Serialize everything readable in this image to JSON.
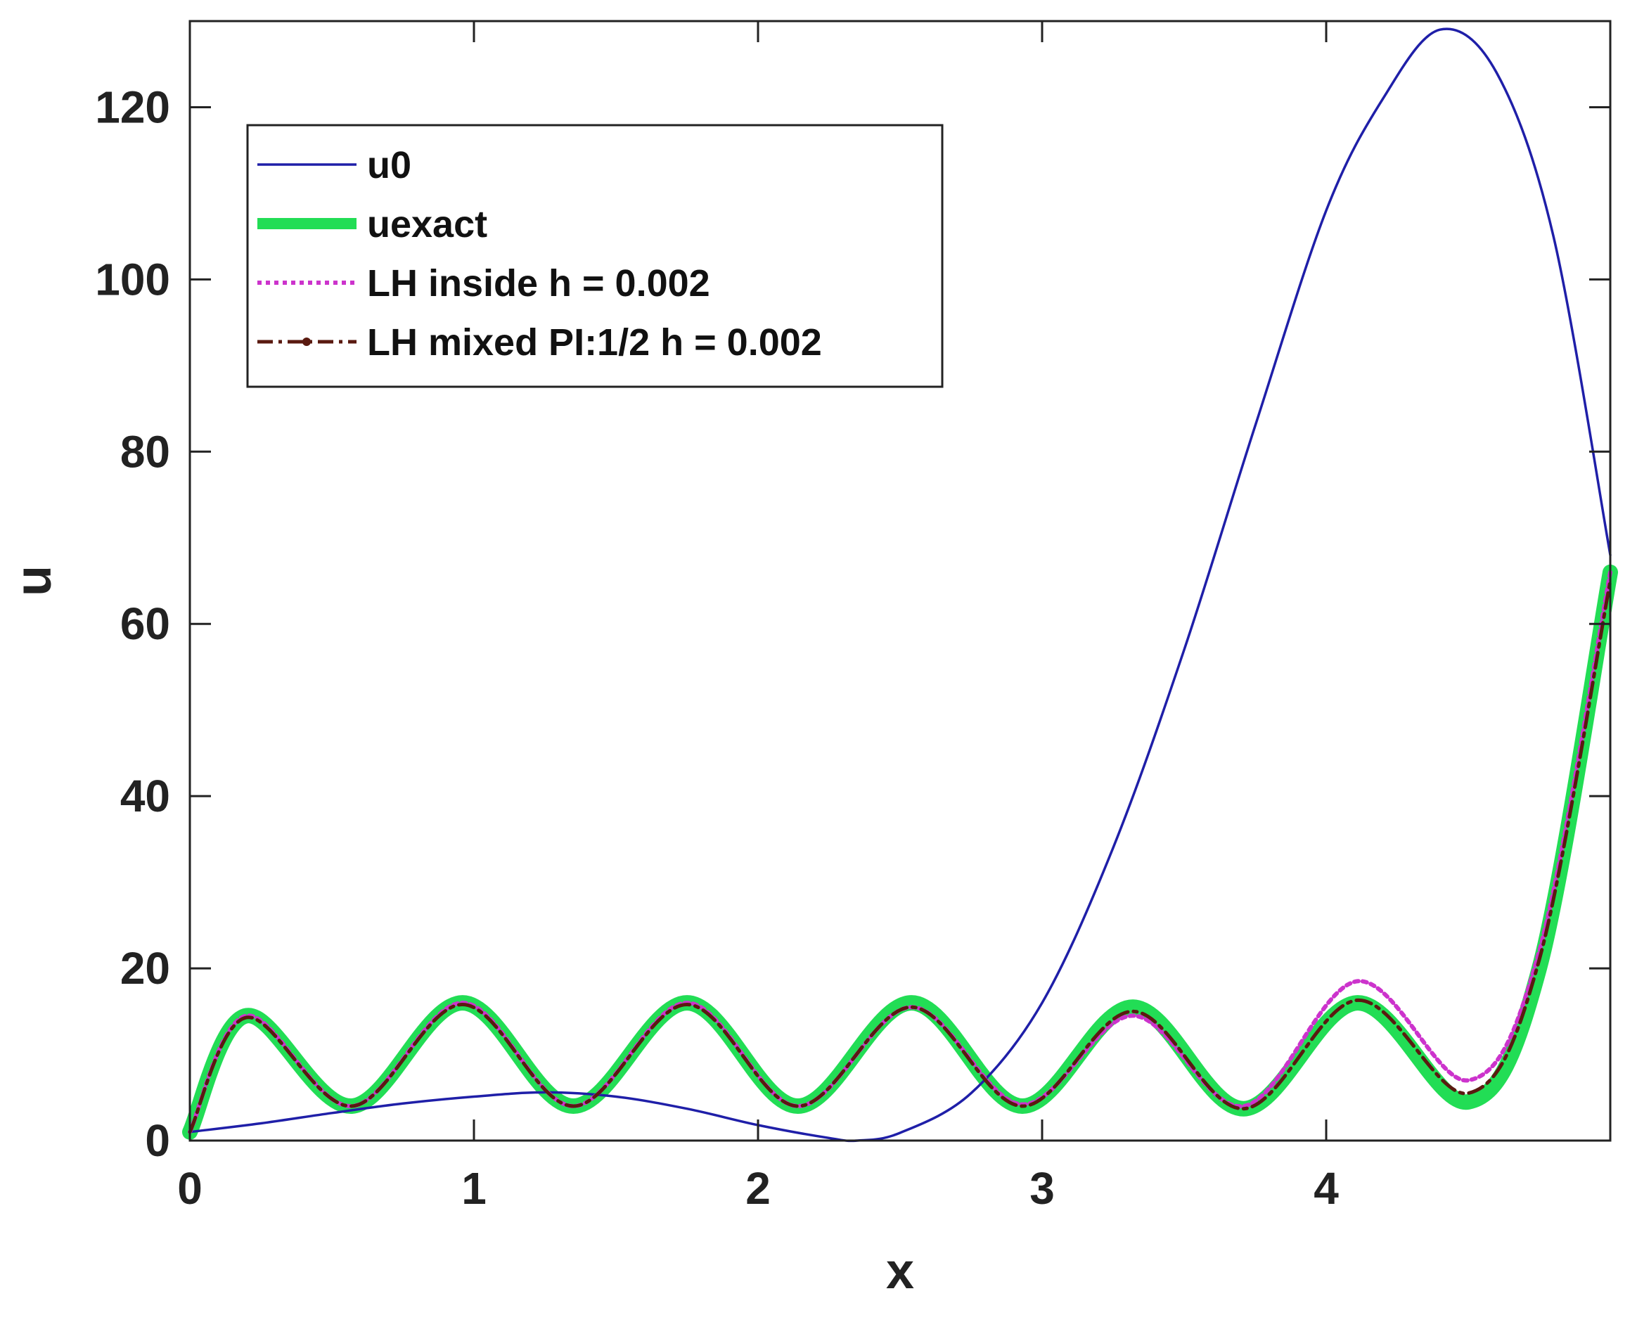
{
  "chart_data": {
    "type": "line",
    "title": "",
    "xlabel": "x",
    "ylabel": "u",
    "xlim": [
      0,
      5
    ],
    "ylim": [
      0,
      130
    ],
    "xticks": [
      0,
      1,
      2,
      3,
      4
    ],
    "xtick_labels": [
      "0",
      "1",
      "2",
      "3",
      "4"
    ],
    "yticks": [
      0,
      20,
      40,
      60,
      80,
      100,
      120
    ],
    "ytick_labels": [
      "0",
      "20",
      "40",
      "60",
      "80",
      "100",
      "120"
    ],
    "grid": false,
    "legend_position": "top-left",
    "series": [
      {
        "name": "u0",
        "color": "#1f1fa8",
        "style": "solid",
        "x": [
          0,
          0.25,
          0.5,
          0.75,
          1.0,
          1.25,
          1.5,
          1.75,
          2.0,
          2.25,
          2.35,
          2.5,
          2.75,
          3.0,
          3.25,
          3.5,
          3.75,
          4.0,
          4.2,
          4.4,
          4.6,
          4.8,
          5.0
        ],
        "y": [
          1,
          2,
          3.2,
          4.3,
          5.1,
          5.6,
          5.1,
          3.7,
          1.8,
          0.3,
          0,
          0.9,
          5.5,
          16,
          34,
          57,
          83,
          108,
          121,
          129,
          124,
          105,
          68
        ]
      },
      {
        "name": "uexact",
        "color": "#22dd55",
        "style": "thick-solid",
        "x": [
          0,
          0.2,
          0.57,
          0.96,
          1.35,
          1.75,
          2.14,
          2.54,
          2.93,
          3.32,
          3.71,
          4.11,
          4.5,
          4.75,
          5.0
        ],
        "y": [
          1,
          14.5,
          4,
          16,
          4,
          16,
          4,
          16,
          4,
          15.5,
          3.7,
          16,
          4.5,
          20,
          66
        ]
      },
      {
        "name": "LH inside h = 0.002",
        "color": "#cc33cc",
        "style": "dotted",
        "x": [
          0,
          0.2,
          0.57,
          0.96,
          1.35,
          1.75,
          2.14,
          2.54,
          2.93,
          3.32,
          3.71,
          4.11,
          4.5,
          4.75,
          5.0
        ],
        "y": [
          1,
          14.5,
          4,
          16,
          4,
          16,
          4,
          15.5,
          4.2,
          14.5,
          4,
          18.5,
          7,
          22,
          66
        ]
      },
      {
        "name": "LH mixed PI:1/2  h = 0.002",
        "color": "#5a1a10",
        "style": "dash-dot",
        "x": [
          0,
          0.2,
          0.57,
          0.96,
          1.35,
          1.75,
          2.14,
          2.54,
          2.93,
          3.32,
          3.71,
          4.11,
          4.5,
          4.75,
          5.0
        ],
        "y": [
          1,
          14.3,
          4,
          15.8,
          4,
          15.8,
          4,
          15.5,
          4,
          15,
          3.7,
          16.3,
          5.5,
          21,
          65
        ]
      }
    ]
  }
}
